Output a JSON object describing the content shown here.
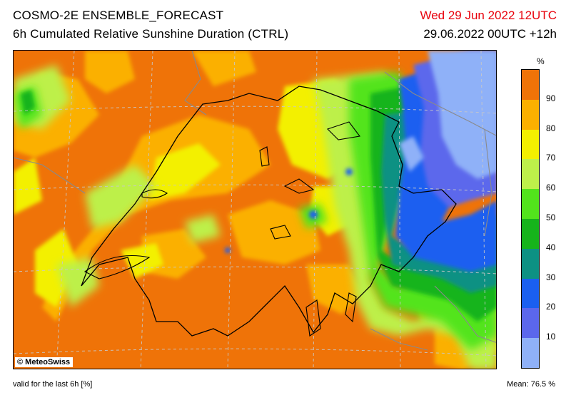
{
  "header": {
    "title": "COSMO-2E ENSEMBLE_FORECAST",
    "subtitle": "6h Cumulated Relative Sunshine Duration (CTRL)",
    "valid_time": "Wed 29 Jun 2022 12UTC",
    "run_time": "29.06.2022 00UTC +12h"
  },
  "map": {
    "copyright": "© MeteoSwiss",
    "colors": {
      "ge90": "#ef7308",
      "80-90": "#fbb000",
      "70-80": "#f3f000",
      "60-70": "#bdf04a",
      "50-60": "#52e41c",
      "40-50": "#16b41b",
      "30-40": "#0d9183",
      "20-30": "#1a5ff0",
      "10-20": "#5b67ec",
      "lt10": "#8fb1f8"
    }
  },
  "legend": {
    "unit": "%",
    "ticks": [
      "90",
      "80",
      "70",
      "60",
      "50",
      "40",
      "30",
      "20",
      "10"
    ],
    "colors": [
      "#ef7308",
      "#fbb000",
      "#f3f000",
      "#bdf04a",
      "#52e41c",
      "#16b41b",
      "#0d9183",
      "#1a5ff0",
      "#5b67ec",
      "#8fb1f8"
    ]
  },
  "footer": {
    "validity": "valid for the last 6h [%]",
    "mean": "Mean:  76.5 %"
  }
}
